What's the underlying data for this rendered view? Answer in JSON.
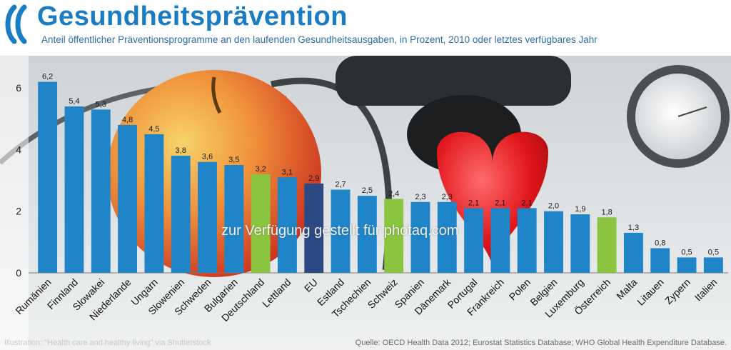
{
  "header": {
    "title": "Gesundheitsprävention",
    "subtitle": "Anteil öffentlicher Präventionsprogramme an den laufenden Gesundheitsausgaben, in Prozent, 2010 oder letztes verfügbares Jahr"
  },
  "footer": {
    "illustration": "Illustration: \"Health care and healthy living\" via Shutterstock",
    "source": "Quelle:  OECD Health Data 2012; Eurostat Statistics Database; WHO Global Health Expenditure Database."
  },
  "watermark": "zur Verfügung gestellt für photaq.com",
  "colors": {
    "brand": "#1a7dc4",
    "bar_default": "#1f84c8",
    "bar_germany_austria": "#8bc53f",
    "bar_eu": "#2b4a84"
  },
  "chart_data": {
    "type": "bar",
    "title": "Gesundheitsprävention",
    "xlabel": "",
    "ylabel": "",
    "ylim": [
      0,
      7
    ],
    "yticks": [
      0,
      2,
      4,
      6
    ],
    "grid": false,
    "categories": [
      "Rumänien",
      "Finnland",
      "Slowakei",
      "Niederlande",
      "Ungarn",
      "Slowenien",
      "Schweden",
      "Bulgarien",
      "Deutschland",
      "Lettland",
      "EU",
      "Estland",
      "Tschechien",
      "Schweiz",
      "Spanien",
      "Dänemark",
      "Portugal",
      "Frankreich",
      "Polen",
      "Belgien",
      "Luxemburg",
      "Österreich",
      "Malta",
      "Litauen",
      "Zypern",
      "Italien"
    ],
    "values": [
      6.2,
      5.4,
      5.3,
      4.8,
      4.5,
      3.8,
      3.6,
      3.5,
      3.2,
      3.1,
      2.9,
      2.7,
      2.5,
      2.4,
      2.3,
      2.3,
      2.1,
      2.1,
      2.1,
      2.0,
      1.9,
      1.8,
      1.3,
      0.8,
      0.5,
      0.5
    ],
    "value_labels": [
      "6,2",
      "5,4",
      "5,3",
      "4,8",
      "4,5",
      "3,8",
      "3,6",
      "3,5",
      "3,2",
      "3,1",
      "2,9",
      "2,7",
      "2,5",
      "2,4",
      "2,3",
      "2,3",
      "2,1",
      "2,1",
      "2,1",
      "2,0",
      "1,9",
      "1,8",
      "1,3",
      "0,8",
      "0,5",
      "0,5"
    ],
    "bar_colors": [
      "#1f84c8",
      "#1f84c8",
      "#1f84c8",
      "#1f84c8",
      "#1f84c8",
      "#1f84c8",
      "#1f84c8",
      "#1f84c8",
      "#8bc53f",
      "#1f84c8",
      "#2b4a84",
      "#1f84c8",
      "#1f84c8",
      "#8bc53f",
      "#1f84c8",
      "#1f84c8",
      "#1f84c8",
      "#1f84c8",
      "#1f84c8",
      "#1f84c8",
      "#1f84c8",
      "#8bc53f",
      "#1f84c8",
      "#1f84c8",
      "#1f84c8",
      "#1f84c8"
    ]
  }
}
